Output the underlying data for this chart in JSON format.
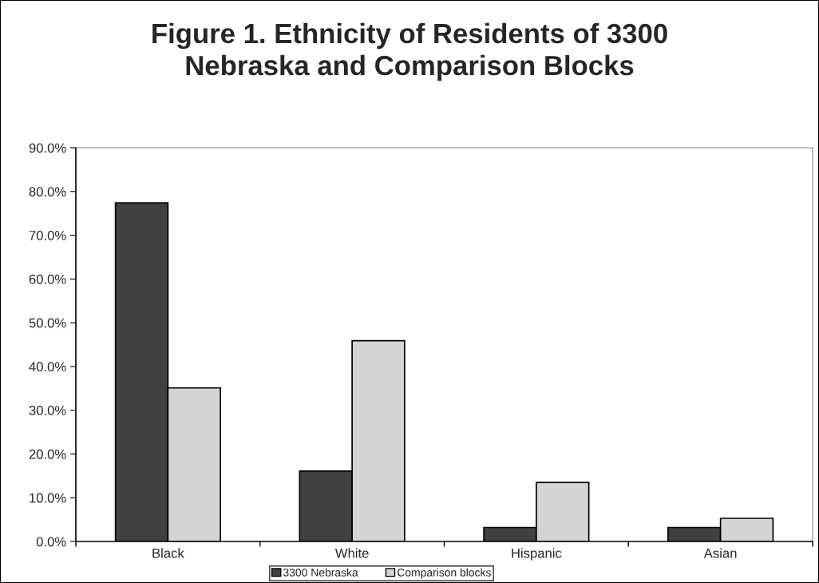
{
  "chart_data": {
    "type": "bar",
    "title": "Figure 1. Ethnicity of Residents of 3300\nNebraska and Comparison Blocks",
    "categories": [
      "Black",
      "White",
      "Hispanic",
      "Asian"
    ],
    "series": [
      {
        "name": "3300 Nebraska",
        "color": "#404040",
        "values": [
          77.4,
          16.1,
          3.2,
          3.2
        ]
      },
      {
        "name": "Comparison blocks",
        "color": "#d4d4d4",
        "values": [
          35.1,
          45.9,
          13.5,
          5.3
        ]
      }
    ],
    "ylim": [
      0,
      90
    ],
    "yticks": [
      {
        "value": 0,
        "label": "0.0%"
      },
      {
        "value": 10,
        "label": "10.0%"
      },
      {
        "value": 20,
        "label": "20.0%"
      },
      {
        "value": 30,
        "label": "30.0%"
      },
      {
        "value": 40,
        "label": "40.0%"
      },
      {
        "value": 50,
        "label": "50.0%"
      },
      {
        "value": 60,
        "label": "60.0%"
      },
      {
        "value": 70,
        "label": "70.0%"
      },
      {
        "value": 80,
        "label": "80.0%"
      },
      {
        "value": 90,
        "label": "90.0%"
      }
    ],
    "grid": false,
    "legend": "bottom"
  }
}
